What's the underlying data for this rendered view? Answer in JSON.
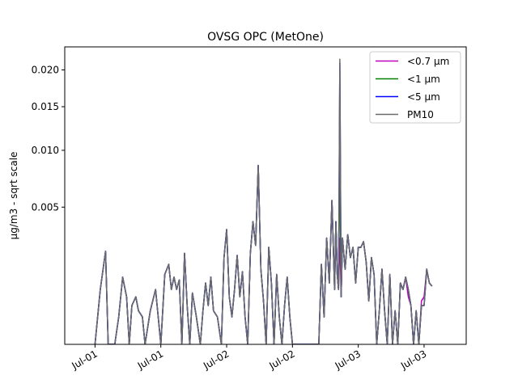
{
  "chart_data": {
    "type": "line",
    "title": "OVSG OPC (MetOne)",
    "xlabel": "",
    "ylabel": "µg/m3 - sqrt scale",
    "y_scale": "sqrt",
    "ylim": [
      0,
      0.0235
    ],
    "xlim": [
      -0.23,
      2.82
    ],
    "x_ticks": [
      0,
      0.5,
      1,
      1.5,
      2,
      2.5
    ],
    "x_tick_labels": [
      "Jul-01",
      "Jul-01",
      "Jul-02",
      "Jul-02",
      "Jul-03",
      "Jul-03"
    ],
    "y_ticks": [
      0.005,
      0.01,
      0.015,
      0.02
    ],
    "y_tick_labels": [
      "0.005",
      "0.010",
      "0.015",
      "0.020"
    ],
    "grid": false,
    "legend_position": "top-right",
    "series": [
      {
        "name": "<0.7 µm",
        "color": "#bf00bf"
      },
      {
        "name": "<1 µm",
        "color": "#008000"
      },
      {
        "name": "<5 µm",
        "color": "#0000ff"
      },
      {
        "name": "PM10",
        "color": "#6b6b6b"
      }
    ],
    "x": [
      0.0,
      0.04,
      0.08,
      0.1,
      0.13,
      0.15,
      0.18,
      0.21,
      0.24,
      0.26,
      0.28,
      0.31,
      0.33,
      0.36,
      0.38,
      0.42,
      0.46,
      0.48,
      0.5,
      0.53,
      0.56,
      0.58,
      0.6,
      0.62,
      0.64,
      0.66,
      0.68,
      0.7,
      0.72,
      0.74,
      0.77,
      0.8,
      0.82,
      0.84,
      0.86,
      0.88,
      0.9,
      0.93,
      0.96,
      0.98,
      1.0,
      1.02,
      1.04,
      1.06,
      1.08,
      1.1,
      1.12,
      1.14,
      1.16,
      1.18,
      1.2,
      1.22,
      1.24,
      1.26,
      1.28,
      1.3,
      1.32,
      1.34,
      1.36,
      1.38,
      1.4,
      1.42,
      1.44,
      1.46,
      1.48,
      1.5,
      1.6,
      1.7,
      1.72,
      1.74,
      1.76,
      1.78,
      1.8,
      1.82,
      1.83,
      1.84,
      1.85,
      1.86,
      1.87,
      1.88,
      1.9,
      1.92,
      1.94,
      1.96,
      1.98,
      2.0,
      2.02,
      2.04,
      2.06,
      2.08,
      2.1,
      2.12,
      2.14,
      2.16,
      2.18,
      2.2,
      2.22,
      2.24,
      2.26,
      2.28,
      2.3,
      2.32,
      2.34,
      2.36,
      2.38,
      2.4,
      2.42,
      2.44,
      2.46,
      2.48,
      2.5,
      2.52,
      2.54,
      2.56
    ],
    "pm10": [
      0,
      0.0008,
      0.0023,
      0,
      0,
      0,
      0.0002,
      0.0012,
      0.0006,
      0,
      0.0004,
      0.0006,
      0.0003,
      0.0002,
      0,
      0.0003,
      0.0008,
      0.0002,
      0,
      0.0013,
      0.0017,
      0.0008,
      0.0012,
      0.0008,
      0.0011,
      0,
      0.0022,
      0.0004,
      0,
      0.0007,
      0.0002,
      0,
      0.0003,
      0.001,
      0.0004,
      0.0012,
      0.0003,
      0.0002,
      0,
      0.002,
      0.0035,
      0.0006,
      0.0002,
      0.0008,
      0.0021,
      0.0006,
      0.0014,
      0.0002,
      0,
      0.0022,
      0.004,
      0.0026,
      0.0085,
      0.0015,
      0.0005,
      0,
      0.0025,
      0.001,
      0,
      0.0013,
      0.0002,
      0,
      0.0004,
      0.0012,
      0.0002,
      0,
      0,
      0,
      0.0017,
      0.0002,
      0.003,
      0.001,
      0.0055,
      0.0008,
      0.004,
      0.0013,
      0.0008,
      0.0216,
      0.0006,
      0.003,
      0.0015,
      0.0032,
      0.002,
      0.0025,
      0.001,
      0.0025,
      0.0025,
      0.0028,
      0.0018,
      0.0005,
      0.002,
      0.0013,
      0,
      0.0003,
      0.0015,
      0.0003,
      0,
      0.0013,
      0,
      0.0003,
      0,
      0.001,
      0.0008,
      0.0012,
      0.0008,
      0.0004,
      0,
      0.0003,
      0,
      0.0004,
      0.0004,
      0.0015,
      0.001,
      0.0009
    ],
    "lt07": [
      0,
      0.0008,
      0.0023,
      0,
      0,
      0,
      0.0002,
      0.0012,
      0.0006,
      0,
      0.0004,
      0.0006,
      0.0003,
      0.0002,
      0,
      0.0003,
      0.0008,
      0.0002,
      0,
      0.0013,
      0.0017,
      0.0008,
      0.0012,
      0.0008,
      0.0011,
      0,
      0.0022,
      0.0004,
      0,
      0.0007,
      0.0002,
      0,
      0.0003,
      0.001,
      0.0004,
      0.0012,
      0.0003,
      0.0002,
      0,
      0.002,
      0.0035,
      0.0006,
      0.0002,
      0.0008,
      0.0021,
      0.0006,
      0.0014,
      0.0002,
      0,
      0.0022,
      0.004,
      0.0026,
      0.0085,
      0.0015,
      0.0005,
      0,
      0.0025,
      0.001,
      0,
      0.0013,
      0.0002,
      0,
      0.0004,
      0.0012,
      0.0002,
      0,
      0,
      0,
      0.0017,
      0.0002,
      0.003,
      0.001,
      0.0055,
      0.0008,
      0.004,
      0.0013,
      0.0008,
      0.003,
      0.0006,
      0.003,
      0.0015,
      0.0032,
      0.002,
      0.0025,
      0.001,
      0.0025,
      0.0025,
      0.0028,
      0.0018,
      0.0005,
      0.002,
      0.0013,
      0,
      0.0003,
      0.0015,
      0.0003,
      0,
      0.0013,
      0,
      0.0003,
      0,
      0.001,
      0.0008,
      0.0012,
      0.0006,
      0.0004,
      0,
      0.0003,
      0,
      0.0005,
      0.0006,
      0.0015,
      0.001,
      0.0009
    ],
    "lt1": [
      0,
      0.0008,
      0.0023,
      0,
      0,
      0,
      0.0002,
      0.0012,
      0.0006,
      0,
      0.0004,
      0.0006,
      0.0003,
      0.0002,
      0,
      0.0003,
      0.0008,
      0.0002,
      0,
      0.0013,
      0.0017,
      0.0008,
      0.0012,
      0.0008,
      0.0011,
      0,
      0.0022,
      0.0004,
      0,
      0.0007,
      0.0002,
      0,
      0.0003,
      0.001,
      0.0004,
      0.0012,
      0.0003,
      0.0002,
      0,
      0.002,
      0.0035,
      0.0006,
      0.0002,
      0.0008,
      0.0021,
      0.0006,
      0.0014,
      0.0002,
      0,
      0.0022,
      0.004,
      0.0026,
      0.0085,
      0.0015,
      0.0005,
      0,
      0.0025,
      0.001,
      0,
      0.0013,
      0.0002,
      0,
      0.0004,
      0.0012,
      0.0002,
      0,
      0,
      0,
      0.0017,
      0.0002,
      0.003,
      0.001,
      0.0055,
      0.0008,
      0.004,
      0.0013,
      0.0008,
      0.0088,
      0.0006,
      0.003,
      0.0015,
      0.0032,
      0.002,
      0.0025,
      0.001,
      0.0025,
      0.0025,
      0.0028,
      0.0018,
      0.0005,
      0.002,
      0.0013,
      0,
      0.0003,
      0.0015,
      0.0003,
      0,
      0.0013,
      0,
      0.0003,
      0,
      0.001,
      0.0008,
      0.0012,
      0.0008,
      0.0004,
      0,
      0.0003,
      0,
      0.0004,
      0.0004,
      0.0015,
      0.001,
      0.0009
    ],
    "lt5": [
      0,
      0.0008,
      0.0023,
      0,
      0,
      0,
      0.0002,
      0.0012,
      0.0006,
      0,
      0.0004,
      0.0006,
      0.0003,
      0.0002,
      0,
      0.0003,
      0.0008,
      0.0002,
      0,
      0.0013,
      0.0017,
      0.0008,
      0.0012,
      0.0008,
      0.0011,
      0,
      0.0022,
      0.0004,
      0,
      0.0007,
      0.0002,
      0,
      0.0003,
      0.001,
      0.0004,
      0.0012,
      0.0003,
      0.0002,
      0,
      0.002,
      0.0035,
      0.0006,
      0.0002,
      0.0008,
      0.0021,
      0.0006,
      0.0014,
      0.0002,
      0,
      0.0022,
      0.004,
      0.0026,
      0.0085,
      0.0015,
      0.0005,
      0,
      0.0025,
      0.001,
      0,
      0.0013,
      0.0002,
      0,
      0.0004,
      0.0012,
      0.0002,
      0,
      0,
      0,
      0.0017,
      0.0002,
      0.003,
      0.001,
      0.0055,
      0.0008,
      0.004,
      0.0013,
      0.0008,
      0.021,
      0.0006,
      0.003,
      0.0015,
      0.0032,
      0.002,
      0.0025,
      0.001,
      0.0025,
      0.0025,
      0.0028,
      0.0018,
      0.0005,
      0.002,
      0.0013,
      0,
      0.0003,
      0.0015,
      0.0003,
      0,
      0.0013,
      0,
      0.0003,
      0,
      0.001,
      0.0008,
      0.0012,
      0.0008,
      0.0004,
      0,
      0.0003,
      0,
      0.0004,
      0.0004,
      0.0015,
      0.001,
      0.0009
    ]
  }
}
